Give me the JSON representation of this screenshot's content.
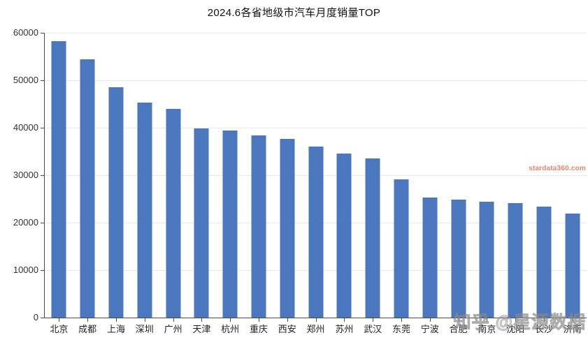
{
  "chart_data": {
    "type": "bar",
    "title": "2024.6各省地级市汽车月度销量TOP",
    "categories": [
      "北京",
      "成都",
      "上海",
      "深圳",
      "广州",
      "天津",
      "杭州",
      "重庆",
      "西安",
      "郑州",
      "苏州",
      "武汉",
      "东莞",
      "宁波",
      "合肥",
      "南京",
      "沈阳",
      "长沙",
      "济南"
    ],
    "values": [
      58200,
      54400,
      48500,
      45300,
      43900,
      39800,
      39400,
      38400,
      37600,
      36100,
      34500,
      33500,
      29100,
      25300,
      24900,
      24400,
      24100,
      23400,
      21900
    ],
    "xlabel": "",
    "ylabel": "",
    "ylim": [
      0,
      60000
    ],
    "yticks": [
      0,
      10000,
      20000,
      30000,
      40000,
      50000,
      60000
    ],
    "grid": true,
    "legend": false,
    "bar_color": "#4a77be"
  },
  "colors": {
    "background": "#ffffff",
    "axis": "#4a4a4a",
    "gridline": "#e9e9e9",
    "title_text": "#111111",
    "tick_text": "#333333",
    "stardata_watermark": "#e0795a"
  },
  "watermarks": {
    "stardata": "stardata360.com",
    "zhihu": "知乎 @星源数据"
  }
}
